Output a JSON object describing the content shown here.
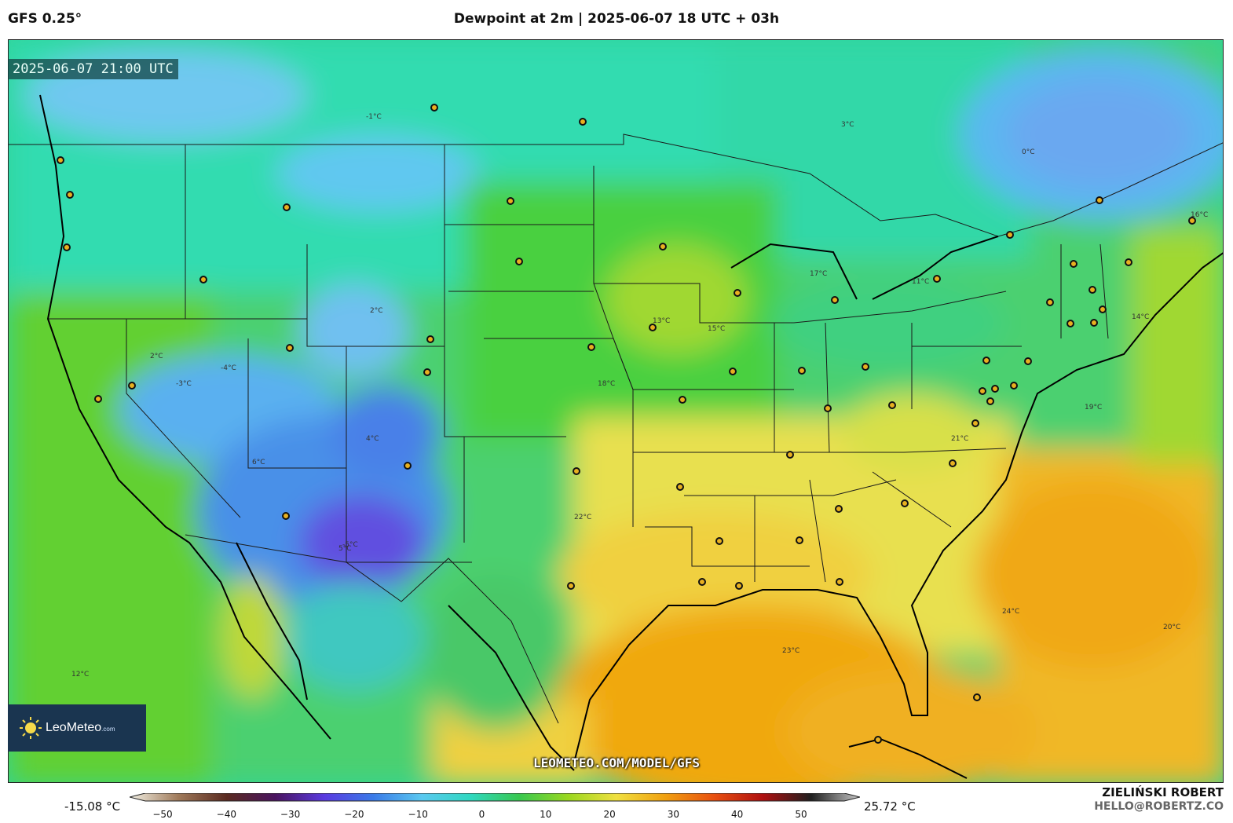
{
  "header": {
    "model": "GFS 0.25°",
    "title": "Dewpoint at 2m | 2025-06-07 18 UTC + 03h"
  },
  "map": {
    "valid_time": "2025-06-07 21:00 UTC",
    "watermark": "LEOMETEO.COM/MODEL/GFS",
    "isotherm_labels": [
      "-1°C",
      "2°C",
      "3°C",
      "0°C",
      "-3°C",
      "-4°C",
      "-5°C",
      "2°C",
      "4°C",
      "5°C",
      "6°C",
      "11°C",
      "13°C",
      "15°C",
      "17°C",
      "18°C",
      "19°C",
      "21°C",
      "22°C",
      "23°C",
      "24°C",
      "20°C",
      "12°C",
      "14°C",
      "16°C"
    ]
  },
  "logo": {
    "name": "LeoMeteo",
    "suffix": ".com"
  },
  "colorbar": {
    "min_label": "-15.08 °C",
    "max_label": "25.72 °C",
    "ticks": [
      "−50",
      "−40",
      "−30",
      "−20",
      "−10",
      "0",
      "10",
      "20",
      "30",
      "40",
      "50"
    ],
    "stops": [
      "#f2f0e4",
      "#a07a5a",
      "#5a2a20",
      "#4a1460",
      "#5a3ae0",
      "#3a7ae8",
      "#5ac8f0",
      "#2fd8c0",
      "#38c850",
      "#9ad820",
      "#f0e040",
      "#f0a010",
      "#e85010",
      "#b01010",
      "#202020",
      "#c8c8c8"
    ]
  },
  "credits": {
    "author": "ZIELIŃSKI ROBERT",
    "email": "HELLO@ROBERTZ.CO"
  },
  "colors": {
    "ocean_warm": "#f0b020",
    "mid_green": "#4cd850",
    "teal": "#2fd8b0",
    "cold_blue": "#5a8ae8",
    "deep_blue": "#6a4ae0",
    "yellow": "#e8e050"
  }
}
